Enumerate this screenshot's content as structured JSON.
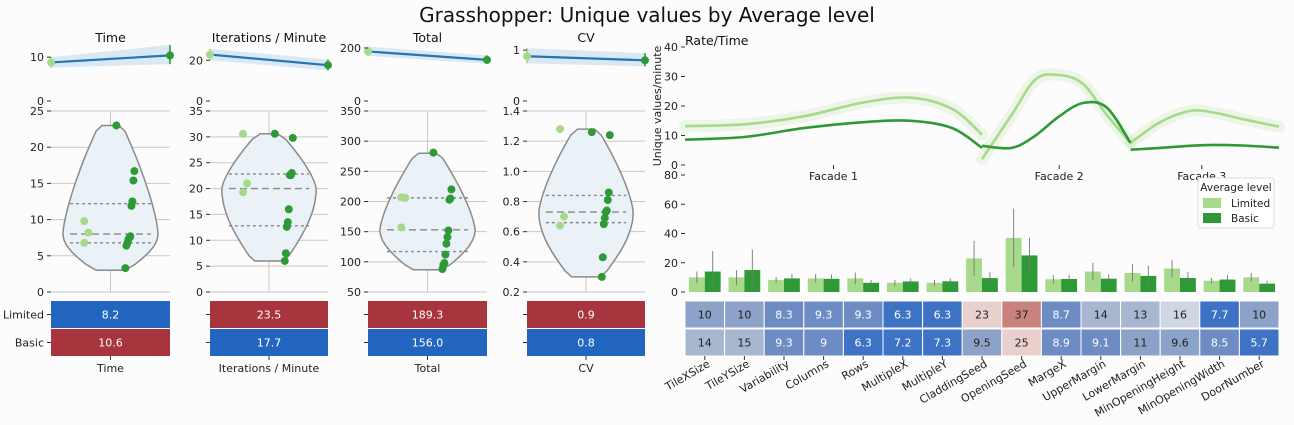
{
  "title": "Grasshopper: Unique values by Average level",
  "colors": {
    "light_green": "#a6d98a",
    "dark_green": "#2e9a36",
    "line_blue": "#1f77b4",
    "band_blue": "#d0e2f2",
    "red_cell": "#a8343d",
    "blue_cell": "#2266bf",
    "violin_edge": "#8a8a8a",
    "violin_fill": "#eaf2f8"
  },
  "chart_data": [
    {
      "type": "line",
      "name": "time-trend",
      "title": "Time",
      "categories": [
        "Limited",
        "Basic"
      ],
      "values": [
        8.8,
        10.4
      ],
      "band": [
        [
          7.6,
          10.0
        ],
        [
          8.4,
          12.8
        ]
      ],
      "ylim": [
        0,
        13
      ],
      "yticks": [
        "0",
        "10"
      ],
      "grid": false
    },
    {
      "type": "line",
      "name": "iterations-trend",
      "title": "Iterations / Minute",
      "categories": [
        "Limited",
        "Basic"
      ],
      "values": [
        22.8,
        17.6
      ],
      "band": [
        [
          20.0,
          25.6
        ],
        [
          15.0,
          20.4
        ]
      ],
      "ylim": [
        0,
        28
      ],
      "yticks": [
        "0",
        "20"
      ],
      "grid": false
    },
    {
      "type": "line",
      "name": "total-trend",
      "title": "Total",
      "categories": [
        "Limited",
        "Basic"
      ],
      "values": [
        187,
        155
      ],
      "band": [
        [
          170,
          205
        ],
        [
          140,
          172
        ]
      ],
      "ylim": [
        0,
        215
      ],
      "yticks": [
        "0",
        "200"
      ],
      "grid": false
    },
    {
      "type": "line",
      "name": "cv-trend",
      "title": "CV",
      "categories": [
        "Limited",
        "Basic"
      ],
      "values": [
        0.88,
        0.8
      ],
      "band": [
        [
          0.74,
          1.04
        ],
        [
          0.68,
          0.94
        ]
      ],
      "ylim": [
        0,
        1.12
      ],
      "yticks": [
        "0",
        "1"
      ],
      "grid": false
    },
    {
      "type": "scatter",
      "name": "time-violin",
      "ylim": [
        0,
        25
      ],
      "yticks": [
        "0",
        "5",
        "10",
        "15",
        "20",
        "25"
      ],
      "violin": {
        "min": 3,
        "max": 23,
        "quartiles": [
          6.8,
          8.0,
          12.2
        ]
      },
      "series": [
        {
          "name": "Limited",
          "values": [
            9.8,
            8.2,
            6.8
          ]
        },
        {
          "name": "Basic",
          "values": [
            23.0,
            16.7,
            15.4,
            12.5,
            11.9,
            7.7,
            7.5,
            7.3,
            6.8,
            6.4,
            3.3
          ]
        }
      ],
      "table": {
        "rows": [
          "Limited",
          "Basic"
        ],
        "values": [
          "8.2",
          "10.6"
        ],
        "colors": [
          "blue",
          "red"
        ],
        "xlabel": "Time"
      }
    },
    {
      "type": "scatter",
      "name": "iterations-violin",
      "ylim": [
        0,
        35
      ],
      "yticks": [
        "0",
        "5",
        "10",
        "15",
        "20",
        "25",
        "30",
        "35"
      ],
      "violin": {
        "min": 6,
        "max": 30.6,
        "quartiles": [
          12.8,
          20.0,
          22.8
        ]
      },
      "series": [
        {
          "name": "Limited",
          "values": [
            30.6,
            21.0,
            19.3
          ]
        },
        {
          "name": "Basic",
          "values": [
            30.6,
            29.8,
            23.0,
            22.6,
            22.6,
            16.0,
            13.5,
            12.6,
            7.5,
            6.0
          ]
        }
      ],
      "table": {
        "rows": [
          "Limited",
          "Basic"
        ],
        "values": [
          "23.5",
          "17.7"
        ],
        "colors": [
          "red",
          "blue"
        ],
        "xlabel": "Iterations / Minute"
      }
    },
    {
      "type": "scatter",
      "name": "total-violin",
      "ylim": [
        50,
        350
      ],
      "yticks": [
        "50",
        "100",
        "150",
        "200",
        "250",
        "300",
        "350"
      ],
      "violin": {
        "min": 87,
        "max": 280,
        "quartiles": [
          117,
          153,
          206
        ]
      },
      "series": [
        {
          "name": "Limited",
          "values": [
            207,
            206,
            157
          ]
        },
        {
          "name": "Basic",
          "values": [
            281,
            220,
            205,
            203,
            152,
            141,
            130,
            112,
            98,
            95,
            88
          ]
        }
      ],
      "table": {
        "rows": [
          "Limited",
          "Basic"
        ],
        "values": [
          "189.3",
          "156.0"
        ],
        "colors": [
          "red",
          "blue"
        ],
        "xlabel": "Total"
      }
    },
    {
      "type": "scatter",
      "name": "cv-violin",
      "ylim": [
        0.2,
        1.4
      ],
      "yticks": [
        "0.2",
        "0.4",
        "0.6",
        "0.8",
        "1.0",
        "1.2",
        "1.4"
      ],
      "violin": {
        "min": 0.3,
        "max": 1.28,
        "quartiles": [
          0.66,
          0.73,
          0.84
        ]
      },
      "series": [
        {
          "name": "Limited",
          "values": [
            1.28,
            0.7,
            0.64
          ]
        },
        {
          "name": "Basic",
          "values": [
            1.26,
            1.24,
            0.86,
            0.81,
            0.74,
            0.73,
            0.69,
            0.65,
            0.43,
            0.3
          ]
        }
      ],
      "table": {
        "rows": [
          "Limited",
          "Basic"
        ],
        "values": [
          "0.9",
          "0.8"
        ],
        "colors": [
          "red",
          "blue"
        ],
        "xlabel": "CV"
      }
    },
    {
      "type": "line",
      "name": "rate-time",
      "title": "Rate/Time",
      "ylabel": "Unique values/minute",
      "ylim": [
        0,
        40
      ],
      "yticks": [
        "0",
        "10",
        "20",
        "30",
        "40"
      ],
      "xlim": [
        0,
        100
      ],
      "xticks": [
        "Facade 1",
        "Facade 2",
        "Facade 3"
      ],
      "xtick_positions": [
        25,
        63,
        87
      ],
      "series": [
        {
          "name": "Limited",
          "segments": [
            {
              "x": [
                0,
                10,
                20,
                30,
                38,
                45,
                50
              ],
              "y": [
                13.2,
                13.8,
                16.5,
                21.2,
                22.8,
                19.0,
                10.3
              ]
            },
            {
              "x": [
                50,
                55,
                59,
                63,
                67,
                71,
                75
              ],
              "y": [
                2.0,
                17.0,
                29.0,
                30.5,
                27.5,
                17.0,
                7.5
              ]
            },
            {
              "x": [
                75,
                80,
                85,
                89,
                94,
                100
              ],
              "y": [
                7.5,
                14.5,
                18.3,
                17.8,
                15.5,
                13.0
              ]
            }
          ]
        },
        {
          "name": "Basic",
          "segments": [
            {
              "x": [
                0,
                10,
                20,
                30,
                38,
                45,
                50
              ],
              "y": [
                8.6,
                9.5,
                12.5,
                14.5,
                15.0,
                12.5,
                5.8
              ]
            },
            {
              "x": [
                50,
                55,
                59,
                63,
                67,
                71,
                75
              ],
              "y": [
                6.5,
                5.8,
                10.0,
                16.5,
                21.0,
                19.5,
                7.5
              ]
            },
            {
              "x": [
                75,
                80,
                85,
                89,
                94,
                100
              ],
              "y": [
                5.2,
                5.8,
                6.5,
                6.8,
                6.6,
                5.9
              ]
            }
          ]
        }
      ]
    },
    {
      "type": "bar",
      "name": "parameter-bars",
      "categories": [
        "TileXSize",
        "TileYSize",
        "Variability",
        "Columns",
        "Rows",
        "MultipleX",
        "MultipleY",
        "CladdingSeed",
        "OpeningSeed",
        "MargeX",
        "UpperMargin",
        "LowerMargin",
        "MinOpeningHeight",
        "MinOpeningWidth",
        "DoorNumber"
      ],
      "ylim": [
        0,
        80
      ],
      "yticks": [
        "0",
        "20",
        "40",
        "60",
        "80"
      ],
      "legend": {
        "title": "Average level",
        "position": "right"
      },
      "series": [
        {
          "name": "Limited",
          "values": [
            10,
            10,
            8.3,
            9.3,
            9.3,
            6.3,
            6.3,
            23,
            37,
            8.7,
            14,
            13,
            16,
            7.7,
            10
          ],
          "err": [
            4,
            5,
            2,
            3,
            4,
            2,
            2,
            12,
            20,
            3,
            6,
            6,
            6,
            2,
            3
          ]
        },
        {
          "name": "Basic",
          "values": [
            14,
            15,
            9.3,
            9,
            6.3,
            7.2,
            7.3,
            9.5,
            25,
            8.9,
            9.1,
            11,
            9.6,
            8.5,
            5.7
          ],
          "err": [
            14,
            14,
            3,
            3,
            2,
            2,
            2,
            4,
            12,
            3,
            3,
            7,
            4,
            3,
            2
          ]
        }
      ],
      "table": {
        "rows": [
          "Limited",
          "Basic"
        ],
        "values": [
          [
            "10",
            "10",
            "8.3",
            "9.3",
            "9.3",
            "6.3",
            "6.3",
            "23",
            "37",
            "8.7",
            "14",
            "13",
            "16",
            "7.7",
            "10"
          ],
          [
            "14",
            "15",
            "9.3",
            "9",
            "6.3",
            "7.2",
            "7.3",
            "9.5",
            "25",
            "8.9",
            "9.1",
            "11",
            "9.6",
            "8.5",
            "5.7"
          ]
        ]
      }
    }
  ]
}
